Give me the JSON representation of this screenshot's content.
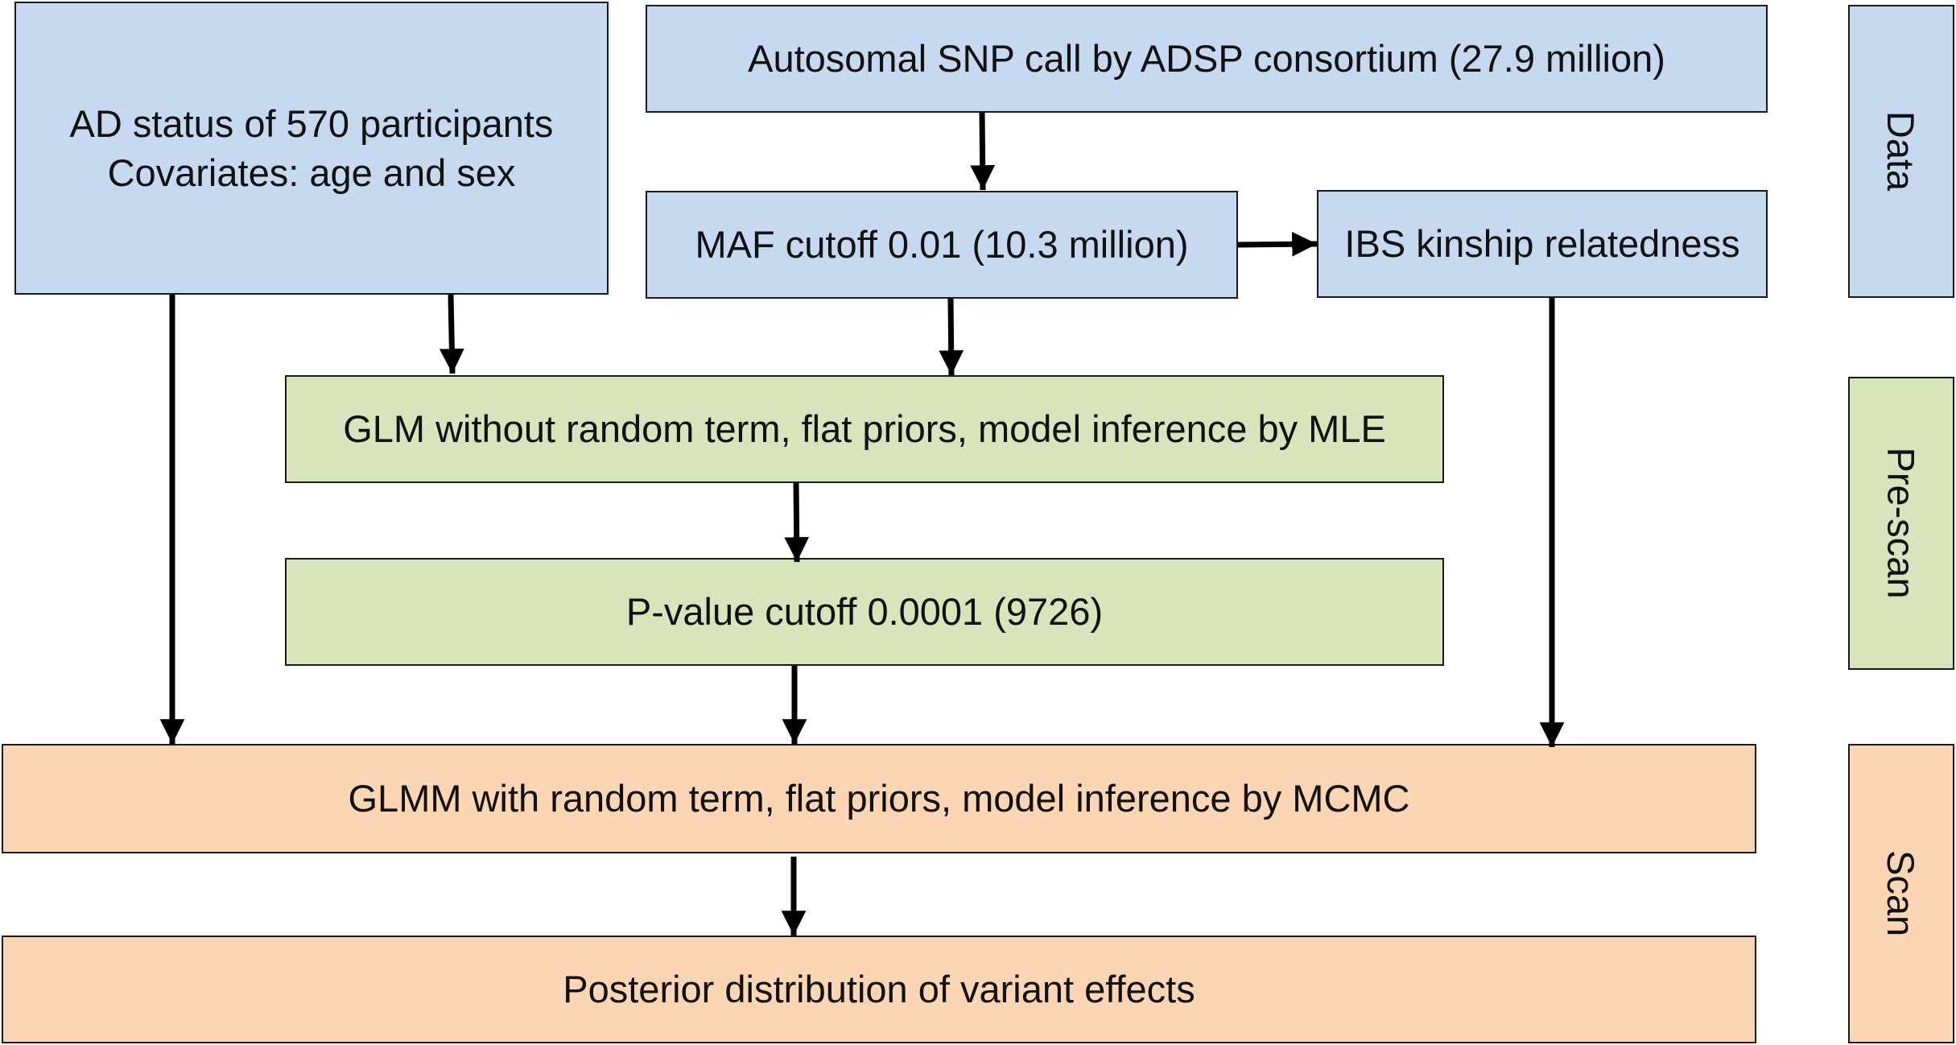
{
  "nodes": {
    "ad_status": {
      "line1": "AD status of 570 participants",
      "line2": "Covariates: age and sex"
    },
    "snp_call": "Autosomal SNP call by ADSP consortium (27.9 million)",
    "maf_cutoff": "MAF cutoff 0.01 (10.3 million)",
    "ibs_kinship": "IBS kinship relatedness",
    "glm": "GLM without random term, flat priors, model inference by MLE",
    "pvalue_cutoff": "P-value cutoff 0.0001 (9726)",
    "glmm": "GLMM with random term, flat priors, model inference by MCMC",
    "posterior": "Posterior distribution of variant effects"
  },
  "stages": {
    "data": "Data",
    "prescan": "Pre-scan",
    "scan": "Scan"
  },
  "colors": {
    "data": "#c6d9f0",
    "prescan": "#d8e4bc",
    "scan": "#fcd5b4",
    "stroke": "#000000"
  }
}
